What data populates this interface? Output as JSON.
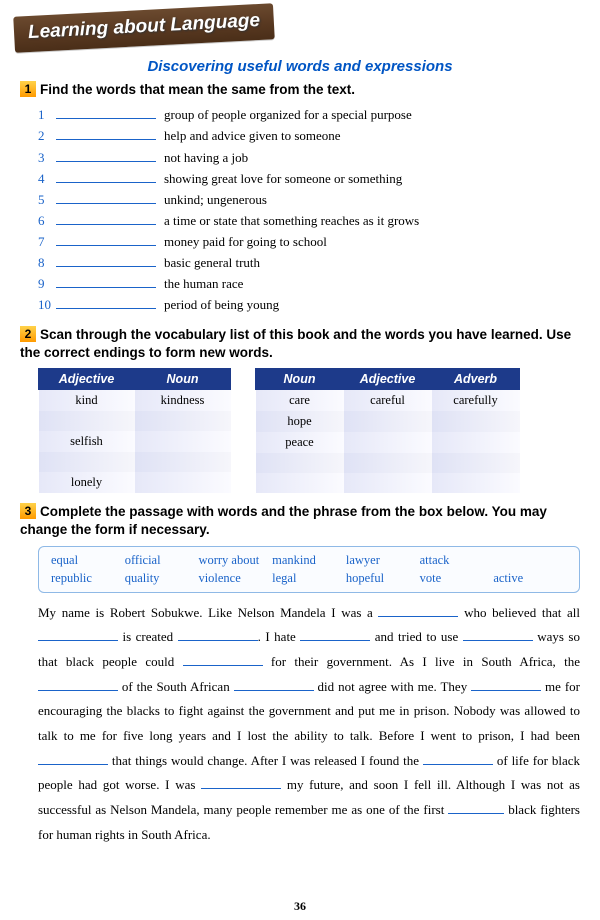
{
  "banner": "Learning about Language",
  "subtitle": "Discovering useful words and expressions",
  "ex1": {
    "num": "1",
    "title": "Find the words that mean the same from the text.",
    "items": [
      {
        "i": "1",
        "t": "group of people organized for a special purpose"
      },
      {
        "i": "2",
        "t": "help and advice given to someone"
      },
      {
        "i": "3",
        "t": "not having a job"
      },
      {
        "i": "4",
        "t": "showing great love for someone or something"
      },
      {
        "i": "5",
        "t": "unkind; ungenerous"
      },
      {
        "i": "6",
        "t": "a time or state that something reaches as it grows"
      },
      {
        "i": "7",
        "t": "money paid for going to school"
      },
      {
        "i": "8",
        "t": "basic general truth"
      },
      {
        "i": "9",
        "t": "the human race"
      },
      {
        "i": "10",
        "t": "period of being young"
      }
    ]
  },
  "ex2": {
    "num": "2",
    "title": "Scan through the vocabulary list of this book and the words you have learned. Use the correct endings to form new words.",
    "t1": {
      "headers": [
        "Adjective",
        "Noun"
      ],
      "rows": [
        [
          "kind",
          "kindness"
        ],
        [
          "",
          ""
        ],
        [
          "selfish",
          ""
        ],
        [
          "",
          ""
        ],
        [
          "lonely",
          ""
        ]
      ]
    },
    "t2": {
      "headers": [
        "Noun",
        "Adjective",
        "Adverb"
      ],
      "rows": [
        [
          "care",
          "careful",
          "carefully"
        ],
        [
          "hope",
          "",
          ""
        ],
        [
          "peace",
          "",
          ""
        ],
        [
          "",
          "",
          ""
        ],
        [
          "",
          "",
          ""
        ]
      ]
    }
  },
  "ex3": {
    "num": "3",
    "title": "Complete the passage with words and the phrase from the box below. You may change the form if necessary.",
    "box": [
      [
        "equal",
        "official",
        "worry about",
        "mankind",
        "lawyer",
        "attack",
        ""
      ],
      [
        "republic",
        "quality",
        "violence",
        "legal",
        "hopeful",
        "vote",
        "active"
      ]
    ],
    "p": {
      "s1a": "My name is Robert Sobukwe. Like Nelson Mandela I was a ",
      "s1b": " who believed that all ",
      "s2a": " is created ",
      "s2b": ". I hate ",
      "s2c": " and tried to use ",
      "s2d": " ways so that black people could ",
      "s3a": " for their government. As I live in South Africa, the ",
      "s4a": " of the South African ",
      "s4b": " did not agree with me. They ",
      "s5a": " me for encouraging the blacks to fight against the government and put me in prison. Nobody was allowed to talk to me for five long years and I lost the ability to talk. Before I went to prison, I had been ",
      "s6a": " that things would change. After I was released I found the ",
      "s6b": " of life for black people had got worse. I was ",
      "s7a": " my future, and soon I fell ill. Although I was not as successful as Nelson Mandela, many people remember me as one of the first ",
      "s8a": " black fighters for human rights in South Africa."
    }
  },
  "page_num": "36",
  "colors": {
    "accent": "#1a63c9",
    "header_bg": "#1d3a8a",
    "banner_bg": "#5a3a22",
    "num_bg": "#ff9a00"
  }
}
